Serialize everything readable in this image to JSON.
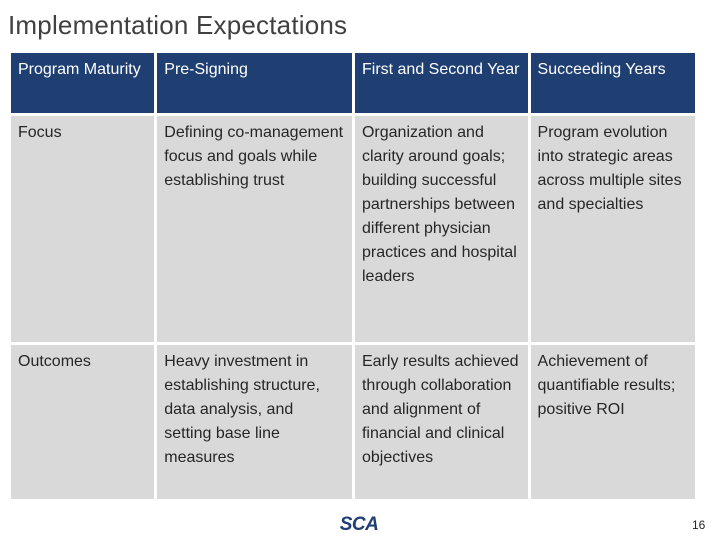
{
  "slide": {
    "title": "Implementation Expectations",
    "page_number": "16",
    "logo_text": "SCA",
    "accent_color": "#1f3f73",
    "cell_color": "#d9d9d9"
  },
  "table": {
    "headers": [
      "Program Maturity",
      "Pre-Signing",
      "First and Second Year",
      "Succeeding Years"
    ],
    "rows": [
      {
        "label": "Focus",
        "cells": [
          "Defining co-management focus and goals while establishing trust",
          "Organization and clarity around goals; building successful partnerships between different physician practices and hospital leaders",
          "Program evolution into strategic areas across multiple sites and specialties"
        ]
      },
      {
        "label": "Outcomes",
        "cells": [
          "Heavy investment in establishing structure, data analysis, and setting base line measures",
          "Early results achieved through collaboration and alignment of financial and clinical objectives",
          "Achievement of quantifiable results; positive ROI"
        ]
      }
    ]
  }
}
